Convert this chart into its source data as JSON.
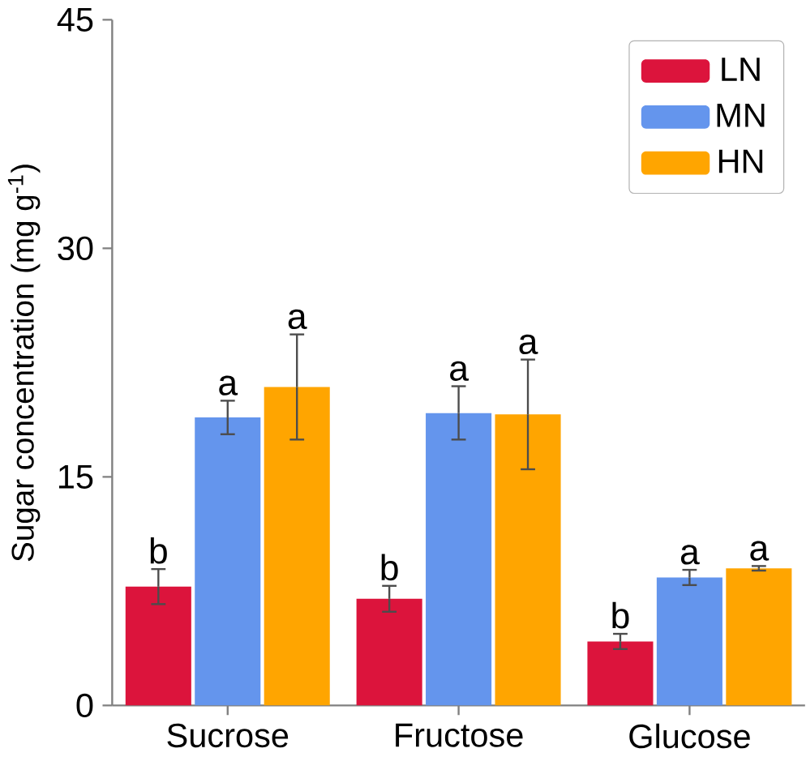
{
  "chart_data": {
    "type": "bar",
    "ylabel": "Sugar concentration (mg g$^{-1}$)",
    "categories": [
      "Sucrose",
      "Fructose",
      "Glucose"
    ],
    "series": [
      {
        "name": "LN",
        "color": "#dc143c",
        "values": [
          7.8,
          7.0,
          4.2
        ],
        "errors": [
          1.15,
          0.85,
          0.5
        ]
      },
      {
        "name": "MN",
        "color": "#6495ed",
        "values": [
          18.9,
          19.2,
          8.4
        ],
        "errors": [
          1.1,
          1.75,
          0.5
        ]
      },
      {
        "name": "HN",
        "color": "#ffa500",
        "values": [
          20.9,
          19.1,
          9.0
        ],
        "errors": [
          3.45,
          3.6,
          0.15
        ]
      }
    ],
    "ylim": [
      0,
      45
    ],
    "yticks": [
      0,
      15,
      30,
      45
    ],
    "legend": "top right",
    "grid": false,
    "annotations": [
      "b",
      "a",
      "a",
      "b",
      "a",
      "a",
      "b",
      "a",
      "a"
    ]
  }
}
